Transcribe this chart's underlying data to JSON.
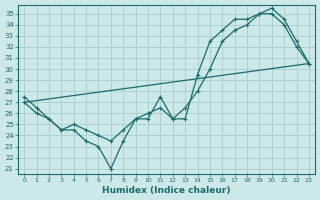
{
  "xlabel": "Humidex (Indice chaleur)",
  "background_color": "#cce8e8",
  "grid_color": "#a8cccc",
  "line_color": "#1a6b6b",
  "xlim": [
    -0.5,
    23.5
  ],
  "ylim": [
    20.5,
    35.8
  ],
  "yticks": [
    21,
    22,
    23,
    24,
    25,
    26,
    27,
    28,
    29,
    30,
    31,
    32,
    33,
    34,
    35
  ],
  "xticks": [
    0,
    1,
    2,
    3,
    4,
    5,
    6,
    7,
    8,
    9,
    10,
    11,
    12,
    13,
    14,
    15,
    16,
    17,
    18,
    19,
    20,
    21,
    22,
    23
  ],
  "series1_x": [
    0,
    1,
    2,
    3,
    4,
    5,
    6,
    7,
    8,
    9,
    10,
    11,
    12,
    13,
    14,
    15,
    16,
    17,
    18,
    19,
    20,
    21,
    22,
    23
  ],
  "series1_y": [
    27.5,
    26.5,
    25.5,
    24.5,
    24.5,
    23.5,
    23.0,
    21.0,
    23.5,
    25.5,
    25.5,
    27.5,
    25.5,
    25.5,
    29.5,
    32.5,
    33.5,
    34.5,
    34.5,
    35.0,
    35.5,
    34.5,
    32.5,
    30.5
  ],
  "series2_x": [
    0,
    1,
    2,
    3,
    4,
    5,
    6,
    7,
    8,
    9,
    10,
    11,
    12,
    13,
    14,
    15,
    16,
    17,
    18,
    19,
    20,
    21,
    22,
    23
  ],
  "series2_y": [
    27.0,
    26.0,
    25.5,
    24.5,
    25.0,
    24.5,
    24.0,
    23.5,
    24.5,
    25.5,
    26.0,
    26.5,
    25.5,
    26.5,
    28.0,
    30.0,
    32.5,
    33.5,
    34.0,
    35.0,
    35.0,
    34.0,
    32.0,
    30.5
  ],
  "series3_x": [
    0,
    23
  ],
  "series3_y": [
    27.0,
    30.5
  ]
}
